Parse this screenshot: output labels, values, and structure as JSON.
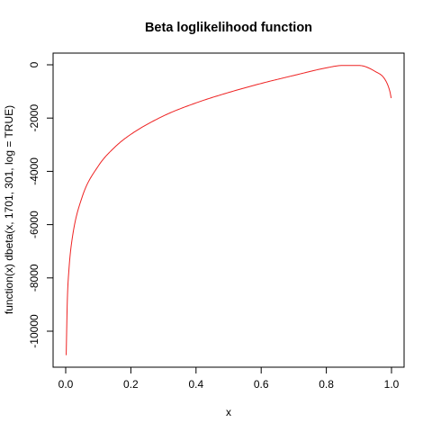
{
  "chart_data": {
    "type": "line",
    "title": "Beta loglikelihood function",
    "xlabel": "x",
    "ylabel": "function(x) dbeta(x, 1701, 301, log = TRUE)",
    "xlim": [
      0,
      1
    ],
    "ylim": [
      -10900,
      120
    ],
    "xticks": [
      0,
      0.2,
      0.4,
      0.6,
      0.8,
      1
    ],
    "xtick_labels": [
      "0.0",
      "0.2",
      "0.4",
      "0.6",
      "0.8",
      "1.0"
    ],
    "yticks": [
      0,
      -2000,
      -4000,
      -6000,
      -8000,
      -10000
    ],
    "ytick_labels": [
      "0",
      "-2000",
      "-4000",
      "-6000",
      "-8000",
      "-10000"
    ],
    "grid": false,
    "series": [
      {
        "color": "#ee2222",
        "function": "dbeta(x, 1701, 301, log = TRUE)",
        "x": [
          0.0015,
          0.005,
          0.01,
          0.02,
          0.05,
          0.1,
          0.15,
          0.2,
          0.3,
          0.4,
          0.5,
          0.6,
          0.7,
          0.8,
          0.85,
          0.9,
          0.95,
          0.98,
          0.995,
          0.999
        ],
        "y": [
          -10900,
          -8850,
          -7680,
          -6520,
          -4980,
          -3800,
          -3100,
          -2610,
          -1920,
          -1430,
          -1040,
          -700,
          -400,
          -115,
          -25,
          -25,
          -250,
          -550,
          -1000,
          -1250
        ]
      }
    ]
  }
}
